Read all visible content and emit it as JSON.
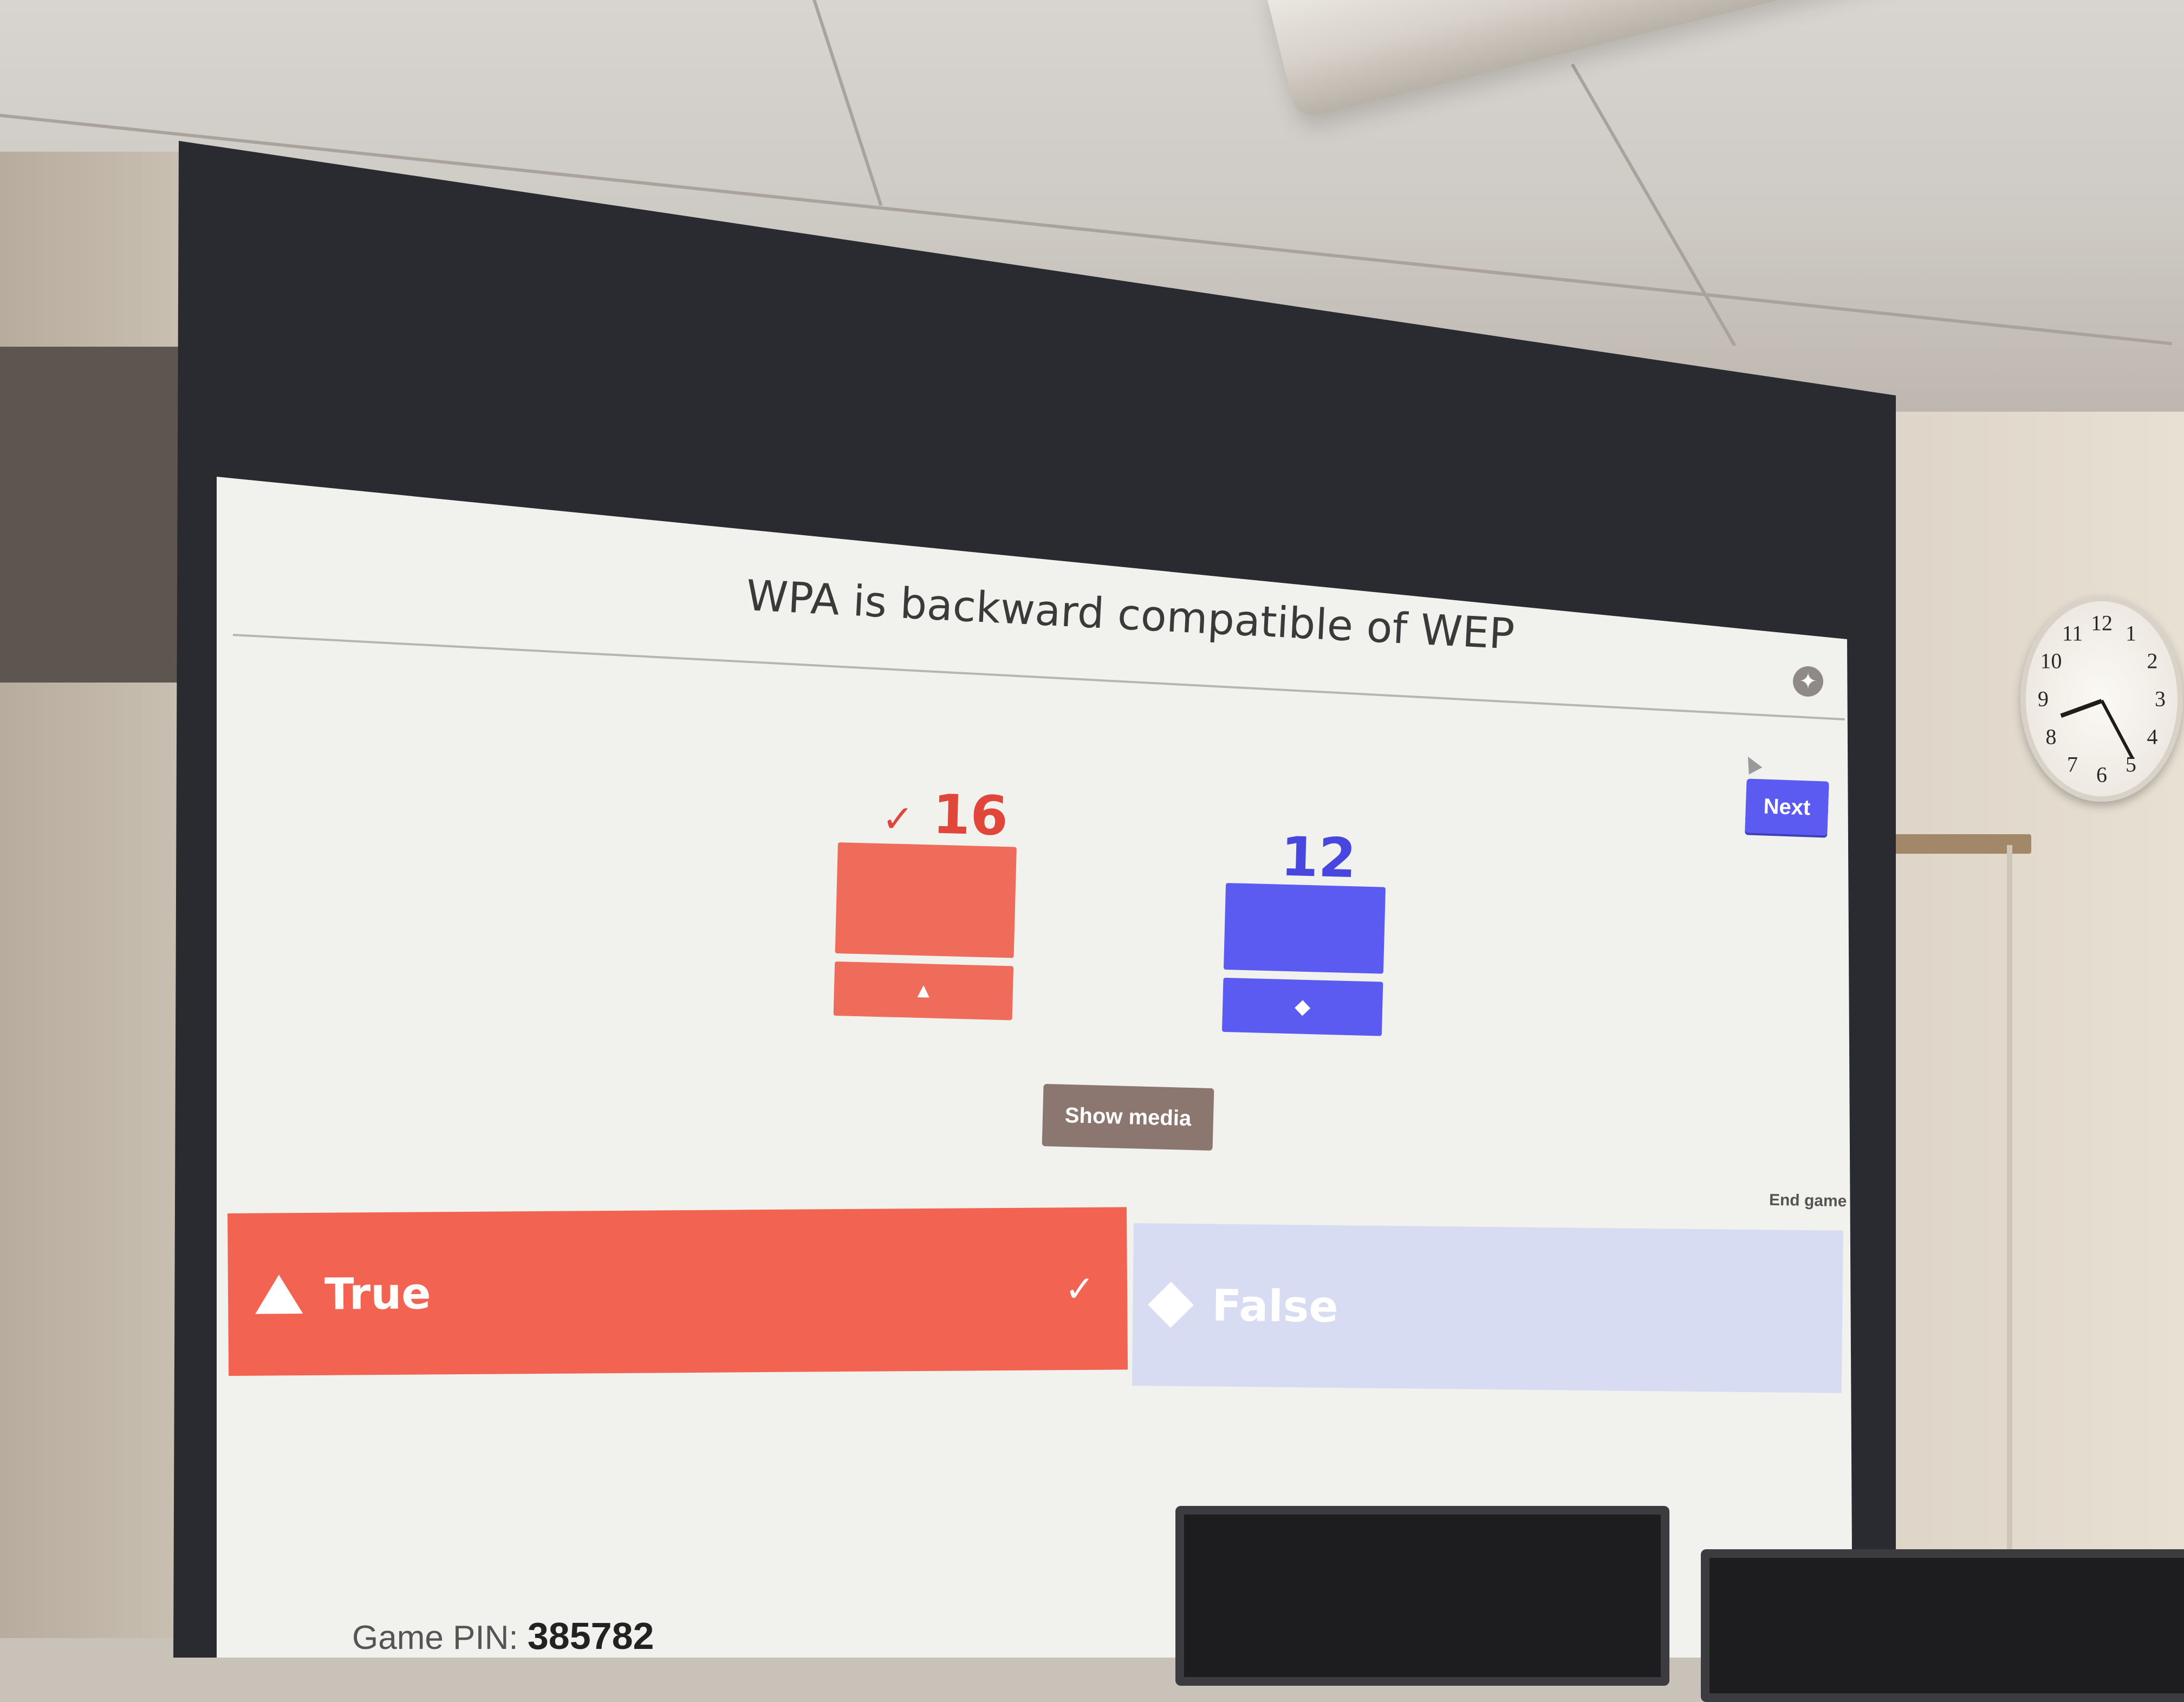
{
  "quiz": {
    "question": "WPA is backward compatible of WEP",
    "next_label": "Next",
    "show_media_label": "Show media",
    "end_game_label": "End game",
    "results": [
      {
        "count": "16",
        "correct": true,
        "shape": "triangle",
        "color": "#ef6b5a"
      },
      {
        "count": "12",
        "correct": false,
        "shape": "diamond",
        "color": "#5b5bf2"
      }
    ],
    "answers": [
      {
        "label": "True",
        "correct": true,
        "shape": "triangle-icon",
        "color": "#f26451"
      },
      {
        "label": "False",
        "correct": false,
        "shape": "diamond-icon",
        "color": "#d7dcf2"
      }
    ],
    "check_mark": "✓",
    "pin_label": "Game PIN:",
    "pin_value": "385782"
  },
  "clock": {
    "numbers": [
      "12",
      "1",
      "2",
      "3",
      "4",
      "5",
      "6",
      "7",
      "8",
      "9",
      "10",
      "11"
    ]
  }
}
